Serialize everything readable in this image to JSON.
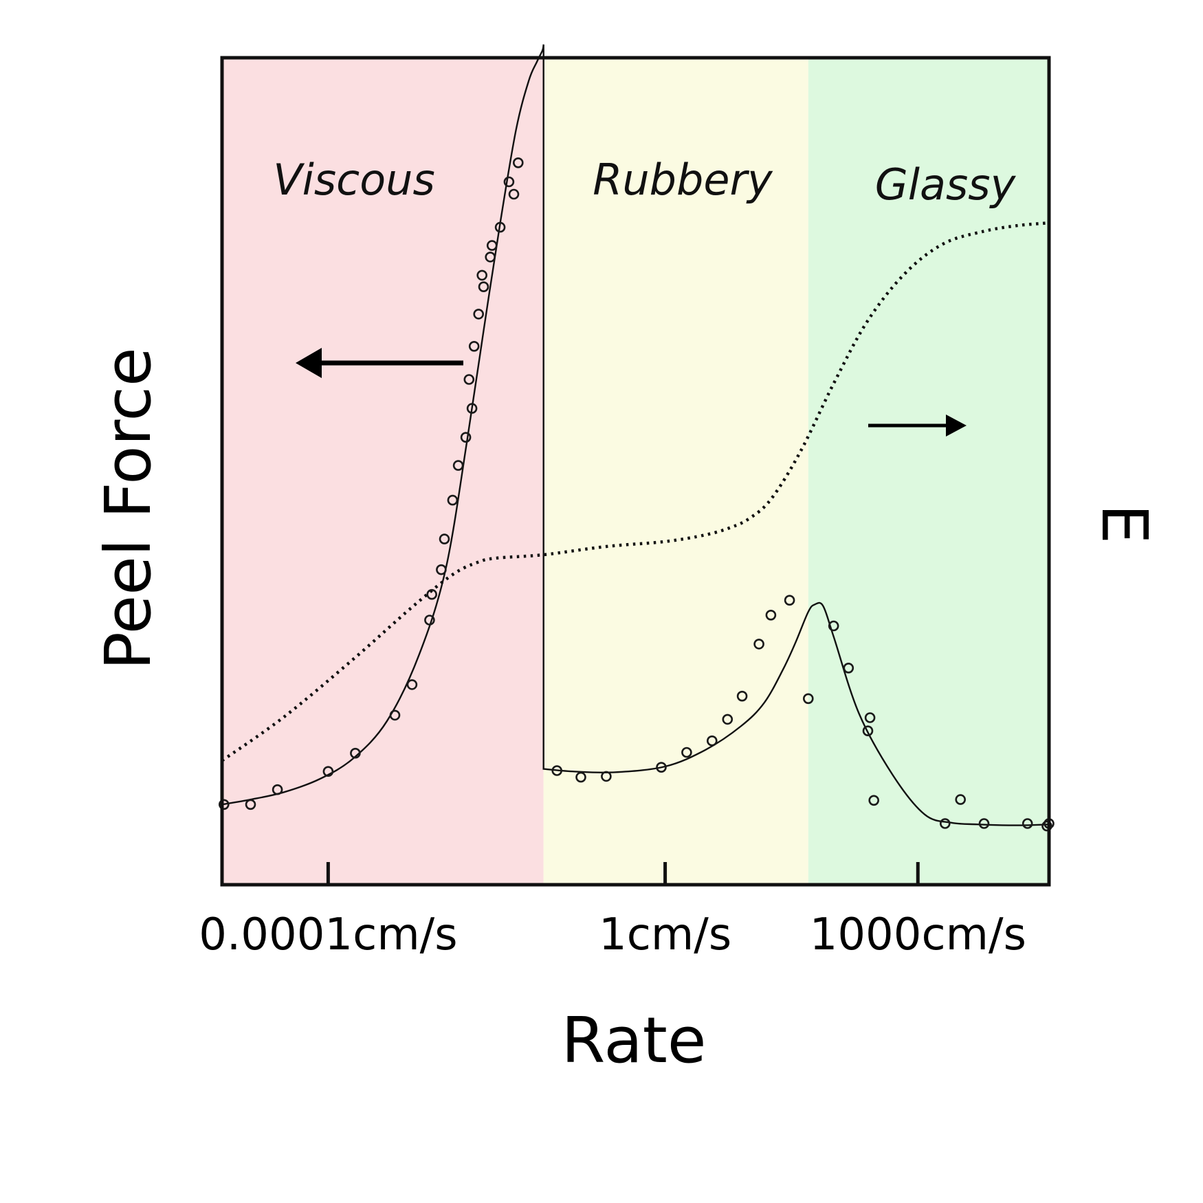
{
  "chart_data": {
    "type": "line",
    "xlabel": "Rate",
    "ylabel": "Peel Force",
    "y2label": "E",
    "x_scale": "log",
    "x_ticks": [
      {
        "value": 0.0001,
        "label": "0.0001cm/s"
      },
      {
        "value": 1,
        "label": "1cm/s"
      },
      {
        "value": 1000,
        "label": "1000cm/s"
      }
    ],
    "xlim": [
      5.5e-06,
      36000
    ],
    "ylim": [
      0,
      100
    ],
    "y2lim": [
      0,
      100
    ],
    "regions": [
      {
        "name": "Viscous",
        "from": 5.5e-06,
        "to": 0.036,
        "color": "#fbdfe1"
      },
      {
        "name": "Rubbery",
        "from": 0.036,
        "to": 50,
        "color": "#fbfbe2"
      },
      {
        "name": "Glassy",
        "from": 50,
        "to": 36000,
        "color": "#ddf9df"
      }
    ],
    "arrows": [
      {
        "direction": "left",
        "axis": "Peel Force"
      },
      {
        "direction": "right",
        "axis": "E"
      }
    ],
    "series": [
      {
        "style": "solid-line",
        "axis": "left",
        "x": [
          5.5e-06,
          1.2e-05,
          3e-05,
          8e-05,
          0.0002,
          0.0005,
          0.0012,
          0.0025,
          0.0045,
          0.007,
          0.011,
          0.017,
          0.024,
          0.03,
          0.035,
          0.036,
          0.036,
          0.08,
          0.25,
          1,
          3,
          8,
          15,
          25,
          35,
          50,
          60,
          75,
          100,
          200,
          500,
          1200,
          2500,
          5000,
          10000,
          20000,
          36000
        ],
        "y": [
          9.7,
          10.3,
          11.2,
          12.8,
          15.3,
          19.8,
          27.8,
          38.3,
          54,
          67,
          80,
          91.3,
          97.2,
          99.5,
          100.9,
          101.6,
          14,
          13.7,
          13.6,
          14.3,
          16.3,
          19.2,
          22,
          26,
          29.2,
          33,
          33.9,
          33.7,
          30,
          20.7,
          13.3,
          8.5,
          7.5,
          7.3,
          7.2,
          7.2,
          7.3
        ]
      },
      {
        "style": "circles",
        "axis": "left",
        "x": [
          5.8e-06,
          1.2e-05,
          2.5e-05,
          0.0001,
          0.00021,
          0.00062,
          0.00099,
          0.0016,
          0.0017,
          0.0022,
          0.0024,
          0.003,
          0.0035,
          0.0043,
          0.0047,
          0.0051,
          0.0054,
          0.0061,
          0.0067,
          0.007,
          0.0084,
          0.0088,
          0.011,
          0.014,
          0.016,
          0.018,
          0.052,
          0.1,
          0.2,
          0.9,
          1.8,
          3.6,
          5.5,
          8.2,
          13,
          18,
          30,
          50,
          100,
          150,
          255,
          270,
          300,
          2100,
          3200,
          6100,
          20000,
          34000,
          36000
        ],
        "y": [
          9.7,
          9.7,
          11.5,
          13.7,
          15.9,
          20.5,
          24.2,
          32,
          35.1,
          38.1,
          41.8,
          46.5,
          50.7,
          54.1,
          61.1,
          57.6,
          65.1,
          69,
          73.7,
          72.3,
          75.9,
          77.3,
          79.5,
          85,
          83.5,
          87.3,
          13.8,
          13,
          13.1,
          14.2,
          16,
          17.4,
          20,
          22.8,
          29.1,
          32.6,
          34.4,
          22.5,
          31.3,
          26.2,
          18.6,
          20.2,
          10.2,
          7.4,
          10.3,
          7.4,
          7.4,
          7.1,
          7.4
        ]
      },
      {
        "style": "dotted-line",
        "axis": "right",
        "x": [
          5.5e-06,
          3e-05,
          0.0002,
          0.001,
          0.003,
          0.006,
          0.01,
          0.036,
          0.2,
          1,
          3,
          6,
          10,
          18,
          40,
          100,
          250,
          700,
          2000,
          6000,
          15000,
          33000
        ],
        "y": [
          15,
          20.3,
          27.3,
          33.6,
          37.5,
          39,
          39.5,
          39.9,
          40.9,
          41.5,
          42.3,
          43.2,
          44.3,
          46.6,
          52.3,
          60.6,
          68.1,
          73.9,
          77.5,
          79,
          79.7,
          80
        ]
      }
    ]
  }
}
